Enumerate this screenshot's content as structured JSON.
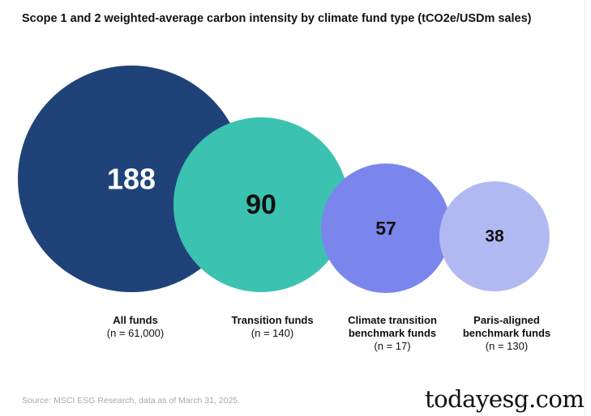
{
  "chart_data": {
    "type": "bubble",
    "title": "Scope 1 and 2 weighted-average carbon intensity by climate fund type (tCO2e/USDm sales)",
    "series": [
      {
        "name_line1": "All funds",
        "name_line2": "",
        "n_label": "(n = 61,000)",
        "value": 188,
        "color": "#1f4379",
        "value_color": "#ffffff"
      },
      {
        "name_line1": "Transition funds",
        "name_line2": "",
        "n_label": "(n = 140)",
        "value": 90,
        "color": "#3cc2b0",
        "value_color": "#111111"
      },
      {
        "name_line1": "Climate transition",
        "name_line2": "benchmark funds",
        "n_label": "(n = 17)",
        "value": 57,
        "color": "#7b86ec",
        "value_color": "#111111"
      },
      {
        "name_line1": "Paris-aligned",
        "name_line2": "benchmark funds",
        "n_label": "(n = 130)",
        "value": 38,
        "color": "#b2b9f2",
        "value_color": "#111111"
      }
    ]
  },
  "source": "Source: MSCI ESG Research, data as of March 31, 2025.",
  "watermark": "todayesg.com"
}
